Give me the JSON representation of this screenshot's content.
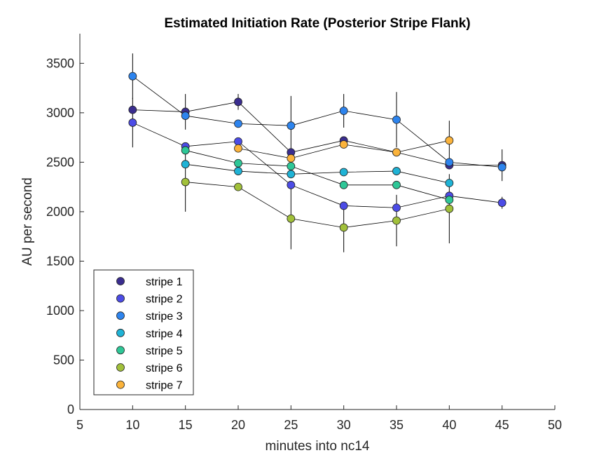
{
  "chart_data": {
    "type": "scatter",
    "title": "Estimated Initiation Rate (Posterior Stripe Flank)",
    "xlabel": "minutes into nc14",
    "ylabel": "AU per second",
    "xlim": [
      5,
      50
    ],
    "ylim": [
      0,
      3800
    ],
    "xticks": [
      5,
      10,
      15,
      20,
      25,
      30,
      35,
      40,
      45,
      50
    ],
    "yticks": [
      0,
      500,
      1000,
      1500,
      2000,
      2500,
      3000,
      3500
    ],
    "grid": false,
    "legend_position": "bottom-left",
    "series": [
      {
        "name": "stripe 1",
        "color": "#3a2d8f",
        "points": [
          {
            "x": 10,
            "y": 3030,
            "err": 0
          },
          {
            "x": 15,
            "y": 3010,
            "err": 180
          },
          {
            "x": 20,
            "y": 3110,
            "err": 80
          },
          {
            "x": 25,
            "y": 2600,
            "err": 0
          },
          {
            "x": 30,
            "y": 2720,
            "err": 0
          },
          {
            "x": 35,
            "y": 2600,
            "err": 0
          },
          {
            "x": 40,
            "y": 2470,
            "err": 0
          },
          {
            "x": 45,
            "y": 2470,
            "err": 160
          }
        ]
      },
      {
        "name": "stripe 2",
        "color": "#4c4ce6",
        "points": [
          {
            "x": 10,
            "y": 2900,
            "err": 250
          },
          {
            "x": 15,
            "y": 2660,
            "err": 0
          },
          {
            "x": 20,
            "y": 2710,
            "err": 0
          },
          {
            "x": 25,
            "y": 2270,
            "err": 0
          },
          {
            "x": 30,
            "y": 2060,
            "err": 0
          },
          {
            "x": 35,
            "y": 2040,
            "err": 0
          },
          {
            "x": 40,
            "y": 2160,
            "err": 0
          },
          {
            "x": 45,
            "y": 2090,
            "err": 60
          }
        ]
      },
      {
        "name": "stripe 3",
        "color": "#2d84ee",
        "points": [
          {
            "x": 10,
            "y": 3370,
            "err": 230
          },
          {
            "x": 15,
            "y": 2970,
            "err": 0
          },
          {
            "x": 20,
            "y": 2890,
            "err": 0
          },
          {
            "x": 25,
            "y": 2870,
            "err": 300
          },
          {
            "x": 30,
            "y": 3020,
            "err": 170
          },
          {
            "x": 35,
            "y": 2930,
            "err": 280
          },
          {
            "x": 40,
            "y": 2500,
            "err": 0
          },
          {
            "x": 45,
            "y": 2450,
            "err": 0
          }
        ]
      },
      {
        "name": "stripe 4",
        "color": "#1fb3d6",
        "points": [
          {
            "x": 15,
            "y": 2480,
            "err": 0
          },
          {
            "x": 20,
            "y": 2410,
            "err": 0
          },
          {
            "x": 25,
            "y": 2380,
            "err": 0
          },
          {
            "x": 30,
            "y": 2400,
            "err": 0
          },
          {
            "x": 35,
            "y": 2410,
            "err": 0
          },
          {
            "x": 40,
            "y": 2290,
            "err": 0
          }
        ]
      },
      {
        "name": "stripe 5",
        "color": "#2ec797",
        "points": [
          {
            "x": 15,
            "y": 2620,
            "err": 0
          },
          {
            "x": 20,
            "y": 2490,
            "err": 0
          },
          {
            "x": 25,
            "y": 2460,
            "err": 0
          },
          {
            "x": 30,
            "y": 2270,
            "err": 0
          },
          {
            "x": 35,
            "y": 2270,
            "err": 0
          },
          {
            "x": 40,
            "y": 2120,
            "err": 0
          }
        ]
      },
      {
        "name": "stripe 6",
        "color": "#a1c03a",
        "points": [
          {
            "x": 15,
            "y": 2300,
            "err": 300
          },
          {
            "x": 20,
            "y": 2250,
            "err": 0
          },
          {
            "x": 25,
            "y": 1930,
            "err": 310
          },
          {
            "x": 30,
            "y": 1840,
            "err": 250
          },
          {
            "x": 35,
            "y": 1910,
            "err": 260
          },
          {
            "x": 40,
            "y": 2030,
            "err": 350
          }
        ]
      },
      {
        "name": "stripe 7",
        "color": "#fbb33b",
        "points": [
          {
            "x": 20,
            "y": 2640,
            "err": 0
          },
          {
            "x": 25,
            "y": 2540,
            "err": 0
          },
          {
            "x": 30,
            "y": 2680,
            "err": 0
          },
          {
            "x": 35,
            "y": 2600,
            "err": 0
          },
          {
            "x": 40,
            "y": 2720,
            "err": 200
          }
        ]
      }
    ]
  }
}
